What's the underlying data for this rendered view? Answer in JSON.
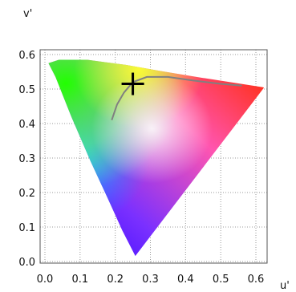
{
  "chart_data": {
    "type": "scatter",
    "title": "",
    "xlabel": "u'",
    "ylabel": "v'",
    "xlim": [
      0.0,
      0.64
    ],
    "ylim": [
      0.0,
      0.62
    ],
    "xticks": [
      "0.0",
      "0.1",
      "0.2",
      "0.3",
      "0.4",
      "0.5",
      "0.6"
    ],
    "yticks": [
      "0.0",
      "0.1",
      "0.2",
      "0.3",
      "0.4",
      "0.5",
      "0.6"
    ],
    "grid": true,
    "gamut_region": {
      "name": "CIE 1976 u'v' chromaticity diagram (spectral locus)",
      "vertices": [
        [
          0.257,
          0.016
        ],
        [
          0.22,
          0.09
        ],
        [
          0.18,
          0.18
        ],
        [
          0.13,
          0.29
        ],
        [
          0.075,
          0.42
        ],
        [
          0.03,
          0.535
        ],
        [
          0.01,
          0.575
        ],
        [
          0.04,
          0.585
        ],
        [
          0.12,
          0.585
        ],
        [
          0.23,
          0.57
        ],
        [
          0.33,
          0.552
        ],
        [
          0.45,
          0.532
        ],
        [
          0.62,
          0.505
        ],
        [
          0.623,
          0.504
        ]
      ]
    },
    "series": [
      {
        "type": "line",
        "color": "#808080",
        "points": [
          [
            0.19,
            0.41
          ],
          [
            0.205,
            0.455
          ],
          [
            0.225,
            0.49
          ],
          [
            0.25,
            0.52
          ],
          [
            0.29,
            0.535
          ],
          [
            0.35,
            0.535
          ],
          [
            0.42,
            0.525
          ],
          [
            0.5,
            0.515
          ],
          [
            0.56,
            0.51
          ]
        ]
      },
      {
        "type": "marker",
        "marker": "plus",
        "color": "#000000",
        "points": [
          [
            0.25,
            0.515
          ]
        ]
      }
    ]
  }
}
